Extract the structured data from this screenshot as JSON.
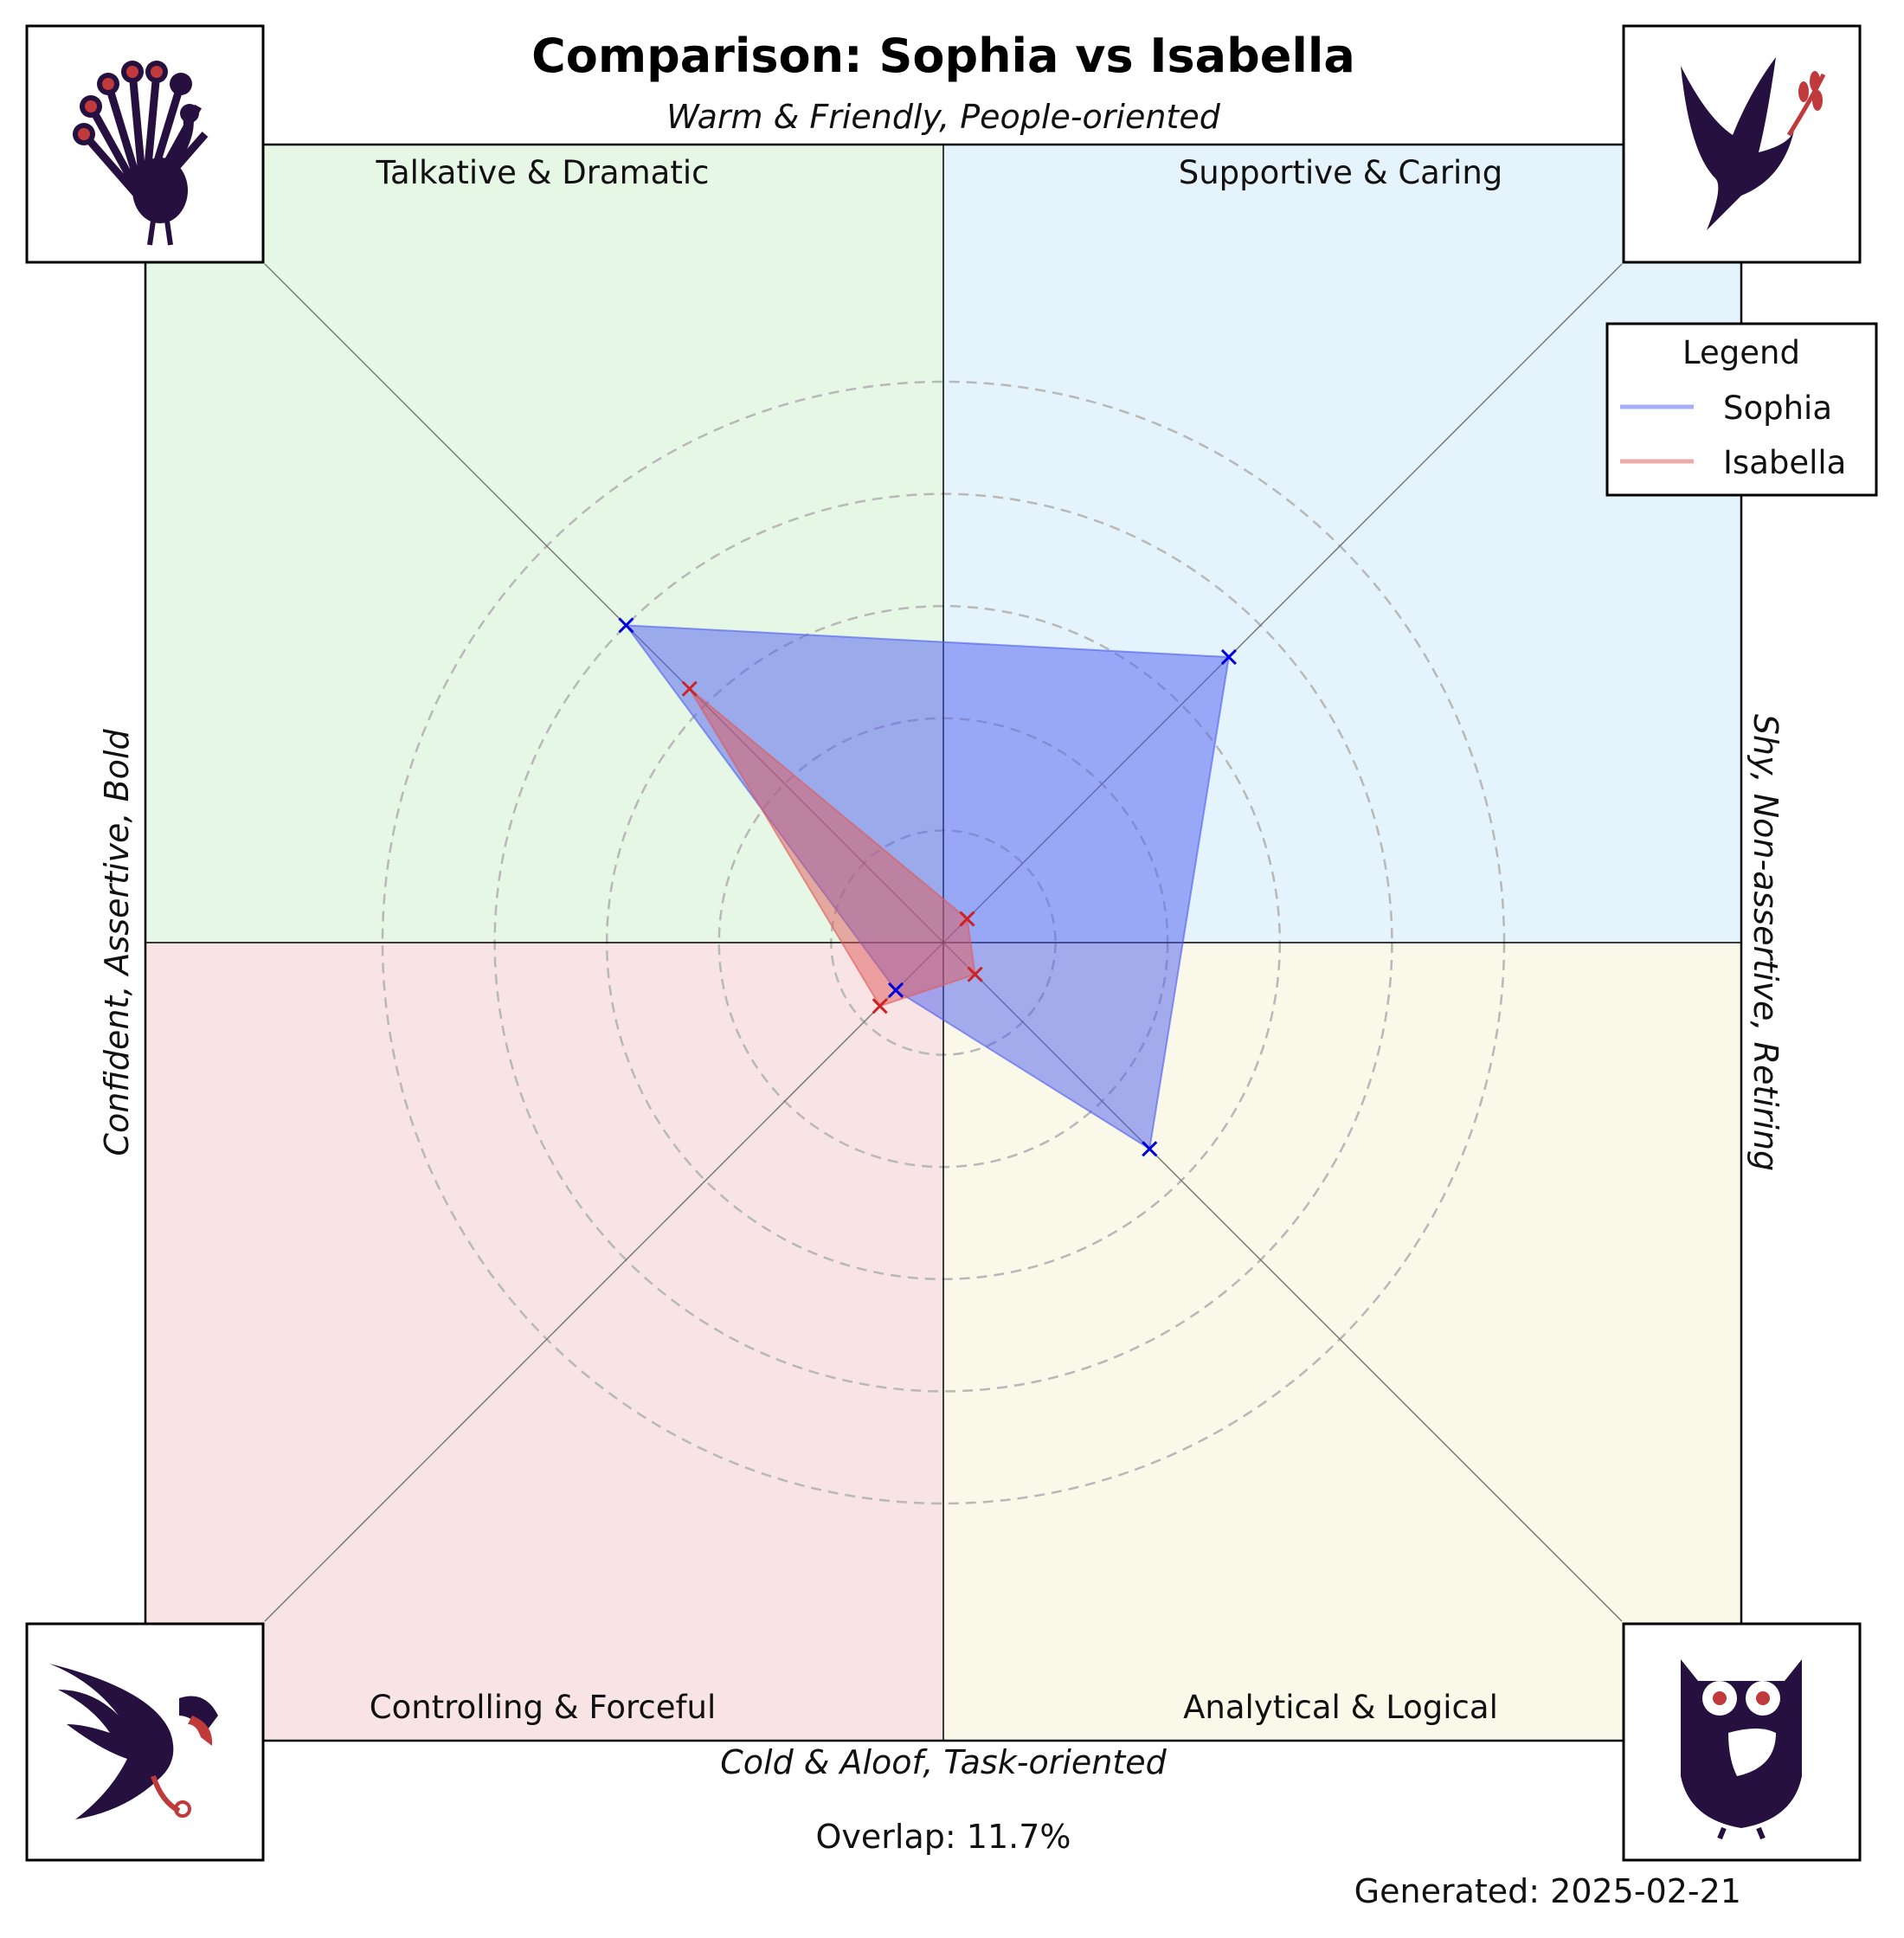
{
  "title": "Comparison: Sophia vs Isabella",
  "axis_labels": {
    "top": "Warm & Friendly, People-oriented",
    "bottom": "Cold & Aloof, Task-oriented",
    "left": "Confident, Assertive, Bold",
    "right": "Shy, Non-assertive, Retiring"
  },
  "quadrants": [
    {
      "label": "Talkative & Dramatic",
      "position": "top-left",
      "color": "#e6f7e6",
      "icon": "peacock-icon"
    },
    {
      "label": "Supportive & Caring",
      "position": "top-right",
      "color": "#e5f3fc",
      "icon": "dove-icon"
    },
    {
      "label": "Controlling & Forceful",
      "position": "bottom-left",
      "color": "#f8e4e4",
      "icon": "eagle-icon"
    },
    {
      "label": "Analytical & Logical",
      "position": "bottom-right",
      "color": "#f9f8e9",
      "icon": "owl-icon"
    }
  ],
  "overlap_text": "Overlap: 11.7%",
  "generated_text": "Generated: 2025-02-21",
  "legend": {
    "title": "Legend",
    "items": [
      {
        "label": "Sophia",
        "color": "#4d5ef0"
      },
      {
        "label": "Isabella",
        "color": "#e05a5a"
      }
    ]
  },
  "chart_data": {
    "type": "radar",
    "axes": [
      "Talkative & Dramatic",
      "Supportive & Caring",
      "Analytical & Logical",
      "Controlling & Forceful"
    ],
    "rlim": [
      0,
      100
    ],
    "grid": true,
    "legend_placement": "top-right",
    "series": [
      {
        "name": "Sophia",
        "color": "#4d5ef0",
        "values": [
          80,
          72,
          52,
          12
        ]
      },
      {
        "name": "Isabella",
        "color": "#e05a5a",
        "values": [
          64,
          6,
          8,
          16
        ]
      }
    ]
  },
  "colors": {
    "icon_dark": "#26103f",
    "icon_accent": "#c0393b",
    "grid_ring": "#b8b8b8"
  }
}
